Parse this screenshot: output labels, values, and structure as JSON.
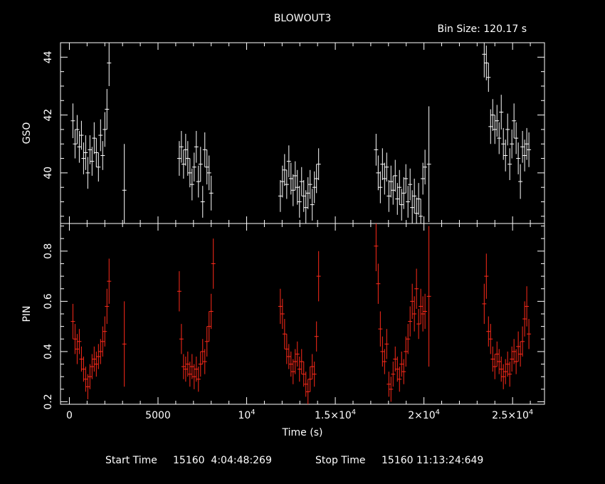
{
  "header": {
    "title": "BLOWOUT3",
    "bin_size": "Bin Size: 120.17 s"
  },
  "footer": {
    "start_label": "Start Time",
    "start_value": "15160  4:04:48:269",
    "stop_label": "Stop Time",
    "stop_value": "15160 11:13:24:649"
  },
  "colors": {
    "gso": "#ffffff",
    "pin": "#ff2a1a",
    "axes": "#ffffff",
    "background": "#000000"
  },
  "chart_data": [
    {
      "type": "scatter",
      "ylabel": "GSO",
      "xlim": [
        -500,
        26800
      ],
      "ylim": [
        38.25,
        44.5
      ],
      "y_ticks": [
        40,
        42,
        44
      ],
      "y_tick_labels": [
        "40",
        "42",
        "44"
      ],
      "series": [
        {
          "values": [
            [
              200,
              41.8,
              0.6
            ],
            [
              320,
              41.0,
              0.5
            ],
            [
              440,
              41.5,
              0.5
            ],
            [
              560,
              40.9,
              0.55
            ],
            [
              680,
              41.3,
              0.5
            ],
            [
              800,
              40.5,
              0.55
            ],
            [
              920,
              40.7,
              0.6
            ],
            [
              1040,
              40.0,
              0.55
            ],
            [
              1160,
              40.8,
              0.5
            ],
            [
              1280,
              40.4,
              0.5
            ],
            [
              1400,
              41.2,
              0.55
            ],
            [
              1520,
              40.7,
              0.5
            ],
            [
              1640,
              40.2,
              0.5
            ],
            [
              1760,
              41.3,
              0.55
            ],
            [
              1880,
              40.6,
              0.5
            ],
            [
              2000,
              41.5,
              0.6
            ],
            [
              2120,
              42.2,
              0.7
            ],
            [
              2240,
              43.8,
              0.8
            ],
            [
              3100,
              39.4,
              1.6
            ],
            [
              6200,
              40.5,
              0.6
            ],
            [
              6320,
              40.9,
              0.55
            ],
            [
              6440,
              40.3,
              0.5
            ],
            [
              6560,
              40.8,
              0.55
            ],
            [
              6680,
              40.5,
              0.6
            ],
            [
              6800,
              40.0,
              0.5
            ],
            [
              6920,
              39.6,
              0.55
            ],
            [
              7040,
              40.2,
              0.5
            ],
            [
              7160,
              40.9,
              0.55
            ],
            [
              7280,
              39.7,
              0.55
            ],
            [
              7400,
              40.3,
              0.6
            ],
            [
              7520,
              39.0,
              0.55
            ],
            [
              7640,
              40.8,
              0.6
            ],
            [
              7760,
              40.2,
              0.6
            ],
            [
              7880,
              40.0,
              0.6
            ],
            [
              8000,
              39.3,
              0.6
            ],
            [
              11900,
              39.2,
              0.55
            ],
            [
              12020,
              39.7,
              0.55
            ],
            [
              12140,
              40.1,
              0.55
            ],
            [
              12260,
              39.6,
              0.5
            ],
            [
              12380,
              40.4,
              0.55
            ],
            [
              12500,
              39.8,
              0.55
            ],
            [
              12620,
              39.4,
              0.55
            ],
            [
              12740,
              39.9,
              0.5
            ],
            [
              12860,
              39.5,
              0.6
            ],
            [
              12980,
              39.0,
              0.55
            ],
            [
              13100,
              39.7,
              0.5
            ],
            [
              13220,
              39.2,
              0.55
            ],
            [
              13340,
              38.8,
              0.6
            ],
            [
              13460,
              39.3,
              0.55
            ],
            [
              13580,
              39.6,
              0.5
            ],
            [
              13700,
              38.9,
              0.55
            ],
            [
              13820,
              39.5,
              0.55
            ],
            [
              13940,
              39.8,
              0.5
            ],
            [
              14060,
              40.3,
              0.55
            ],
            [
              17300,
              40.8,
              0.55
            ],
            [
              17420,
              40.0,
              0.6
            ],
            [
              17540,
              39.5,
              0.55
            ],
            [
              17660,
              40.3,
              0.55
            ],
            [
              17780,
              39.8,
              0.55
            ],
            [
              17900,
              40.2,
              0.5
            ],
            [
              18020,
              39.2,
              0.55
            ],
            [
              18140,
              39.7,
              0.55
            ],
            [
              18260,
              39.4,
              0.5
            ],
            [
              18380,
              39.9,
              0.55
            ],
            [
              18500,
              39.1,
              0.55
            ],
            [
              18620,
              39.5,
              0.6
            ],
            [
              18740,
              38.9,
              0.55
            ],
            [
              18860,
              39.3,
              0.55
            ],
            [
              18980,
              39.8,
              0.5
            ],
            [
              19100,
              39.0,
              0.55
            ],
            [
              19220,
              39.6,
              0.55
            ],
            [
              19340,
              38.8,
              0.6
            ],
            [
              19460,
              39.2,
              0.6
            ],
            [
              19580,
              38.6,
              0.55
            ],
            [
              19700,
              39.1,
              0.55
            ],
            [
              19820,
              38.5,
              0.6
            ],
            [
              19940,
              39.8,
              0.55
            ],
            [
              20060,
              40.2,
              0.6
            ],
            [
              20280,
              40.3,
              2.0
            ],
            [
              23400,
              44.1,
              0.8
            ],
            [
              23520,
              43.8,
              0.6
            ],
            [
              23640,
              43.3,
              0.5
            ],
            [
              23760,
              41.6,
              0.6
            ],
            [
              23880,
              42.0,
              0.55
            ],
            [
              24000,
              41.5,
              0.5
            ],
            [
              24120,
              41.8,
              0.55
            ],
            [
              24240,
              41.2,
              0.55
            ],
            [
              24360,
              42.1,
              0.6
            ],
            [
              24480,
              41.0,
              0.55
            ],
            [
              24600,
              40.6,
              0.55
            ],
            [
              24720,
              41.5,
              0.55
            ],
            [
              24840,
              40.3,
              0.55
            ],
            [
              24960,
              41.0,
              0.5
            ],
            [
              25080,
              41.8,
              0.6
            ],
            [
              25200,
              41.2,
              0.55
            ],
            [
              25320,
              40.5,
              0.55
            ],
            [
              25440,
              39.7,
              0.6
            ],
            [
              25560,
              40.9,
              0.55
            ],
            [
              25680,
              40.6,
              0.55
            ],
            [
              25800,
              41.0,
              0.55
            ],
            [
              25920,
              40.8,
              0.6
            ]
          ]
        }
      ]
    },
    {
      "type": "scatter",
      "ylabel": "PIN",
      "xlabel": "Time (s)",
      "xlim": [
        -500,
        26800
      ],
      "ylim": [
        0.19,
        0.91
      ],
      "y_ticks": [
        0.2,
        0.4,
        0.6,
        0.8
      ],
      "y_tick_labels": [
        "0.2",
        "0.4",
        "0.6",
        "0.8"
      ],
      "x_ticks": [
        0,
        5000,
        10000,
        15000,
        20000,
        25000
      ],
      "x_tick_labels": [
        {
          "base": "0",
          "exp": ""
        },
        {
          "base": "5000",
          "exp": ""
        },
        {
          "base": "10",
          "exp": "4"
        },
        {
          "base": "1.5×10",
          "exp": "4"
        },
        {
          "base": "2×10",
          "exp": "4"
        },
        {
          "base": "2.5×10",
          "exp": "4"
        }
      ],
      "series": [
        {
          "values": [
            [
              200,
              0.52,
              0.07
            ],
            [
              320,
              0.45,
              0.06
            ],
            [
              440,
              0.41,
              0.06
            ],
            [
              560,
              0.44,
              0.05
            ],
            [
              680,
              0.37,
              0.05
            ],
            [
              800,
              0.33,
              0.05
            ],
            [
              920,
              0.29,
              0.05
            ],
            [
              1040,
              0.26,
              0.05
            ],
            [
              1160,
              0.3,
              0.05
            ],
            [
              1280,
              0.34,
              0.05
            ],
            [
              1400,
              0.37,
              0.05
            ],
            [
              1520,
              0.35,
              0.05
            ],
            [
              1640,
              0.38,
              0.05
            ],
            [
              1760,
              0.4,
              0.05
            ],
            [
              1880,
              0.44,
              0.06
            ],
            [
              2000,
              0.48,
              0.06
            ],
            [
              2120,
              0.58,
              0.07
            ],
            [
              2240,
              0.68,
              0.09
            ],
            [
              3100,
              0.43,
              0.17
            ],
            [
              6200,
              0.64,
              0.08
            ],
            [
              6320,
              0.45,
              0.06
            ],
            [
              6440,
              0.34,
              0.05
            ],
            [
              6560,
              0.33,
              0.05
            ],
            [
              6680,
              0.35,
              0.05
            ],
            [
              6800,
              0.31,
              0.05
            ],
            [
              6920,
              0.34,
              0.05
            ],
            [
              7040,
              0.3,
              0.05
            ],
            [
              7160,
              0.33,
              0.05
            ],
            [
              7280,
              0.29,
              0.05
            ],
            [
              7400,
              0.35,
              0.05
            ],
            [
              7520,
              0.4,
              0.05
            ],
            [
              7640,
              0.36,
              0.05
            ],
            [
              7760,
              0.44,
              0.06
            ],
            [
              7880,
              0.5,
              0.06
            ],
            [
              8000,
              0.56,
              0.07
            ],
            [
              8120,
              0.75,
              0.1
            ],
            [
              11900,
              0.58,
              0.07
            ],
            [
              12020,
              0.55,
              0.06
            ],
            [
              12140,
              0.47,
              0.06
            ],
            [
              12260,
              0.41,
              0.06
            ],
            [
              12380,
              0.38,
              0.05
            ],
            [
              12500,
              0.35,
              0.05
            ],
            [
              12620,
              0.32,
              0.05
            ],
            [
              12740,
              0.36,
              0.05
            ],
            [
              12860,
              0.39,
              0.05
            ],
            [
              12980,
              0.33,
              0.05
            ],
            [
              13100,
              0.36,
              0.05
            ],
            [
              13220,
              0.31,
              0.05
            ],
            [
              13340,
              0.27,
              0.05
            ],
            [
              13460,
              0.24,
              0.05
            ],
            [
              13580,
              0.29,
              0.05
            ],
            [
              13700,
              0.34,
              0.05
            ],
            [
              13820,
              0.31,
              0.05
            ],
            [
              13940,
              0.46,
              0.06
            ],
            [
              14060,
              0.7,
              0.1
            ],
            [
              17300,
              0.82,
              0.1
            ],
            [
              17420,
              0.67,
              0.08
            ],
            [
              17540,
              0.49,
              0.07
            ],
            [
              17660,
              0.4,
              0.06
            ],
            [
              17780,
              0.36,
              0.05
            ],
            [
              17900,
              0.43,
              0.06
            ],
            [
              18020,
              0.27,
              0.05
            ],
            [
              18140,
              0.25,
              0.05
            ],
            [
              18260,
              0.31,
              0.05
            ],
            [
              18380,
              0.37,
              0.05
            ],
            [
              18500,
              0.33,
              0.05
            ],
            [
              18620,
              0.29,
              0.05
            ],
            [
              18740,
              0.35,
              0.05
            ],
            [
              18860,
              0.32,
              0.05
            ],
            [
              18980,
              0.4,
              0.06
            ],
            [
              19100,
              0.45,
              0.06
            ],
            [
              19220,
              0.52,
              0.06
            ],
            [
              19340,
              0.6,
              0.07
            ],
            [
              19460,
              0.55,
              0.07
            ],
            [
              19580,
              0.65,
              0.08
            ],
            [
              19700,
              0.51,
              0.06
            ],
            [
              19820,
              0.58,
              0.07
            ],
            [
              19940,
              0.55,
              0.07
            ],
            [
              20060,
              0.56,
              0.07
            ],
            [
              20280,
              0.62,
              0.28
            ],
            [
              23400,
              0.59,
              0.08
            ],
            [
              23520,
              0.7,
              0.09
            ],
            [
              23640,
              0.48,
              0.06
            ],
            [
              23760,
              0.45,
              0.06
            ],
            [
              23880,
              0.37,
              0.05
            ],
            [
              24000,
              0.34,
              0.05
            ],
            [
              24120,
              0.39,
              0.05
            ],
            [
              24240,
              0.36,
              0.05
            ],
            [
              24360,
              0.33,
              0.05
            ],
            [
              24480,
              0.3,
              0.05
            ],
            [
              24600,
              0.32,
              0.05
            ],
            [
              24720,
              0.35,
              0.05
            ],
            [
              24840,
              0.31,
              0.05
            ],
            [
              24960,
              0.37,
              0.05
            ],
            [
              25080,
              0.4,
              0.05
            ],
            [
              25200,
              0.36,
              0.05
            ],
            [
              25320,
              0.42,
              0.06
            ],
            [
              25440,
              0.39,
              0.05
            ],
            [
              25560,
              0.44,
              0.06
            ],
            [
              25680,
              0.53,
              0.07
            ],
            [
              25800,
              0.58,
              0.08
            ],
            [
              25920,
              0.47,
              0.06
            ]
          ]
        }
      ]
    }
  ]
}
